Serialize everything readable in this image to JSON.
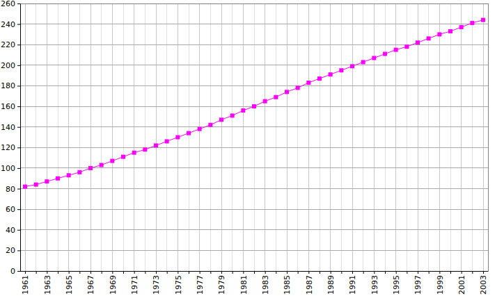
{
  "chart_data": {
    "type": "line",
    "categories": [
      "1961",
      null,
      "1963",
      null,
      "1965",
      null,
      "1967",
      null,
      "1969",
      null,
      "1971",
      null,
      "1973",
      null,
      "1975",
      null,
      "1977",
      null,
      "1979",
      null,
      "1981",
      null,
      "1983",
      null,
      "1985",
      null,
      "1987",
      null,
      "1989",
      null,
      "1991",
      null,
      "1993",
      null,
      "1995",
      null,
      "1997",
      null,
      "1999",
      null,
      "2001",
      null,
      "2003"
    ],
    "values": [
      82,
      84,
      87,
      90,
      93,
      96,
      100,
      103,
      107,
      111,
      115,
      118,
      122,
      126,
      130,
      134,
      138,
      142,
      147,
      151,
      156,
      160,
      165,
      169,
      174,
      178,
      183,
      187,
      191,
      195,
      199,
      203,
      207,
      211,
      215,
      218,
      222,
      226,
      230,
      233,
      237,
      241,
      244
    ],
    "color": "#ff00ff",
    "marker": "square",
    "ylim": [
      0,
      260
    ],
    "yticks": [
      0,
      20,
      40,
      60,
      80,
      100,
      120,
      140,
      160,
      180,
      200,
      220,
      240,
      260
    ],
    "grid": true
  }
}
